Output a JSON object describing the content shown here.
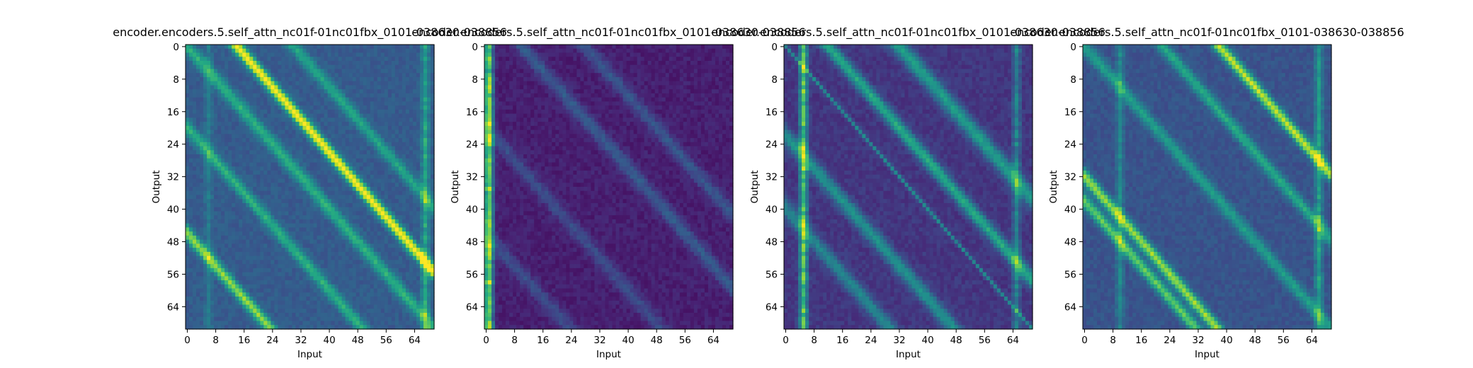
{
  "chart_data": [
    {
      "type": "heatmap",
      "title": "encoder.encoders.5.self_attn_nc01f-01nc01fbx_0101-038630-038856",
      "xlabel": "Input",
      "ylabel": "Output",
      "rows": 70,
      "cols": 70,
      "colormap": "viridis",
      "x_ticks": [
        "0",
        "8",
        "16",
        "24",
        "32",
        "40",
        "48",
        "56",
        "64"
      ],
      "y_ticks": [
        "0",
        "8",
        "16",
        "24",
        "32",
        "40",
        "48",
        "56",
        "64"
      ],
      "bands": [
        {
          "offset": 14,
          "width": 1.4,
          "strength": 0.75
        },
        {
          "offset": 0,
          "width": 1.6,
          "strength": 0.35
        },
        {
          "offset": -20,
          "width": 1.5,
          "strength": 0.35
        },
        {
          "offset": -46,
          "width": 1.4,
          "strength": 0.55
        },
        {
          "offset": 30,
          "width": 1.5,
          "strength": 0.3
        }
      ],
      "vstripes": [
        {
          "col": 67,
          "strength": 0.35
        },
        {
          "col": 6,
          "strength": 0.15
        }
      ],
      "base": 0.25
    },
    {
      "type": "heatmap",
      "title": "encoder.encoders.5.self_attn_nc01f-01nc01fbx_0101-038630-038856",
      "xlabel": "Input",
      "ylabel": "Output",
      "rows": 70,
      "cols": 70,
      "colormap": "viridis",
      "x_ticks": [
        "0",
        "8",
        "16",
        "24",
        "32",
        "40",
        "48",
        "56",
        "64"
      ],
      "y_ticks": [
        "0",
        "8",
        "16",
        "24",
        "32",
        "40",
        "48",
        "56",
        "64"
      ],
      "bands": [
        {
          "offset": 10,
          "width": 1.8,
          "strength": 0.2
        },
        {
          "offset": 28,
          "width": 1.8,
          "strength": 0.18
        },
        {
          "offset": -20,
          "width": 1.8,
          "strength": 0.15
        },
        {
          "offset": -46,
          "width": 1.8,
          "strength": 0.15
        }
      ],
      "vstripes": [
        {
          "col": 1,
          "strength": 0.7
        },
        {
          "col": 0,
          "strength": 0.35
        }
      ],
      "base": 0.05
    },
    {
      "type": "heatmap",
      "title": "encoder.encoders.5.self_attn_nc01f-01nc01fbx_0101-038630-038856",
      "xlabel": "Input",
      "ylabel": "Output",
      "rows": 70,
      "cols": 70,
      "colormap": "viridis",
      "x_ticks": [
        "0",
        "8",
        "16",
        "24",
        "32",
        "40",
        "48",
        "56",
        "64"
      ],
      "y_ticks": [
        "0",
        "8",
        "16",
        "24",
        "32",
        "40",
        "48",
        "56",
        "64"
      ],
      "bands": [
        {
          "offset": 12,
          "width": 1.6,
          "strength": 0.45
        },
        {
          "offset": 32,
          "width": 2.0,
          "strength": 0.4
        },
        {
          "offset": 0,
          "width": 0.5,
          "strength": 0.3
        },
        {
          "offset": -22,
          "width": 1.8,
          "strength": 0.35
        },
        {
          "offset": -40,
          "width": 1.8,
          "strength": 0.3
        }
      ],
      "vstripes": [
        {
          "col": 5,
          "strength": 0.7
        },
        {
          "col": 65,
          "strength": 0.35
        }
      ],
      "base": 0.12
    },
    {
      "type": "heatmap",
      "title": "encoder.encoders.5.self_attn_nc01f-01nc01fbx_0101-038630-038856",
      "xlabel": "Input",
      "ylabel": "Output",
      "rows": 70,
      "cols": 70,
      "colormap": "viridis",
      "x_ticks": [
        "0",
        "8",
        "16",
        "24",
        "32",
        "40",
        "48",
        "56",
        "64"
      ],
      "y_ticks": [
        "0",
        "8",
        "16",
        "24",
        "32",
        "40",
        "48",
        "56",
        "64"
      ],
      "bands": [
        {
          "offset": 38,
          "width": 1.4,
          "strength": 0.65
        },
        {
          "offset": 22,
          "width": 1.5,
          "strength": 0.35
        },
        {
          "offset": 0,
          "width": 1.6,
          "strength": 0.3
        },
        {
          "offset": -32,
          "width": 1.4,
          "strength": 0.6
        },
        {
          "offset": -38,
          "width": 1.4,
          "strength": 0.5
        }
      ],
      "vstripes": [
        {
          "col": 66,
          "strength": 0.35
        },
        {
          "col": 10,
          "strength": 0.25
        }
      ],
      "base": 0.22
    }
  ]
}
